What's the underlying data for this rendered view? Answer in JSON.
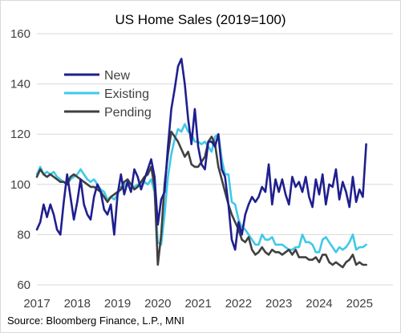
{
  "chart_data": {
    "type": "line",
    "title": "US Home Sales (2019=100)",
    "source": "Source: Bloomberg Finance, L.P., MNI",
    "xlabel": "",
    "ylabel": "",
    "ylim": [
      60,
      160
    ],
    "yticks": [
      "60",
      "80",
      "100",
      "120",
      "140",
      "160"
    ],
    "xlim": [
      2017.0,
      2025.83
    ],
    "xticks": [
      "2017",
      "2018",
      "2019",
      "2020",
      "2021",
      "2022",
      "2023",
      "2024",
      "2025"
    ],
    "grid": "horizontal",
    "legend": "top-left",
    "series": [
      {
        "name": "New",
        "color": "#1f1f8f",
        "x_start": 2017.0,
        "step": 0.08333,
        "values": [
          82,
          85,
          92,
          87,
          92,
          88,
          82,
          80,
          93,
          104,
          95,
          86,
          93,
          102,
          92,
          88,
          86,
          95,
          100,
          97,
          90,
          88,
          92,
          80,
          96,
          104,
          96,
          101,
          97,
          106,
          103,
          98,
          102,
          106,
          110,
          103,
          84,
          94,
          97,
          115,
          130,
          138,
          147,
          150,
          140,
          126,
          116,
          130,
          115,
          108,
          106,
          117,
          117,
          115,
          120,
          106,
          103,
          92,
          78,
          74,
          85,
          80,
          88,
          92,
          95,
          93,
          95,
          99,
          97,
          108,
          92,
          102,
          97,
          102,
          96,
          92,
          103,
          99,
          101,
          97,
          103,
          95,
          91,
          102,
          96,
          104,
          92,
          100,
          99,
          106,
          94,
          101,
          97,
          91,
          103,
          93,
          98,
          95,
          116
        ]
      },
      {
        "name": "Existing",
        "color": "#3fc9e8",
        "x_start": 2017.0,
        "step": 0.08333,
        "values": [
          104,
          107,
          104,
          105,
          104,
          105,
          103,
          102,
          101,
          100,
          102,
          103,
          104,
          106,
          104,
          102,
          101,
          102,
          100,
          98,
          97,
          94,
          95,
          94,
          96,
          99,
          99,
          101,
          100,
          99,
          100,
          100,
          101,
          100,
          102,
          97,
          77,
          76,
          88,
          103,
          112,
          118,
          122,
          121,
          124,
          121,
          120,
          117,
          117,
          116,
          117,
          115,
          113,
          119,
          120,
          110,
          104,
          104,
          93,
          92,
          86,
          83,
          82,
          80,
          78,
          76,
          76,
          80,
          78,
          78,
          79,
          76,
          76,
          76,
          75,
          74,
          74,
          75,
          75,
          80,
          77,
          77,
          76,
          73,
          73,
          78,
          79,
          77,
          75,
          73,
          75,
          74,
          75,
          77,
          80,
          74,
          75,
          75,
          76
        ]
      },
      {
        "name": "Pending",
        "color": "#404040",
        "x_start": 2017.0,
        "step": 0.08333,
        "values": [
          103,
          106,
          104,
          103,
          104,
          103,
          102,
          101,
          101,
          100,
          103,
          104,
          103,
          102,
          101,
          100,
          99,
          99,
          98,
          97,
          95,
          93,
          95,
          96,
          97,
          98,
          101,
          102,
          100,
          98,
          99,
          101,
          103,
          104,
          107,
          99,
          68,
          80,
          100,
          112,
          121,
          119,
          117,
          114,
          111,
          113,
          108,
          107,
          107,
          109,
          111,
          117,
          119,
          116,
          107,
          102,
          97,
          92,
          88,
          85,
          82,
          78,
          77,
          79,
          74,
          72,
          73,
          75,
          73,
          72,
          74,
          73,
          73,
          72,
          73,
          74,
          72,
          74,
          71,
          71,
          71,
          70,
          70,
          71,
          69,
          72,
          72,
          69,
          68,
          69,
          68,
          67,
          69,
          70,
          72,
          68,
          69,
          68,
          68
        ]
      }
    ]
  }
}
